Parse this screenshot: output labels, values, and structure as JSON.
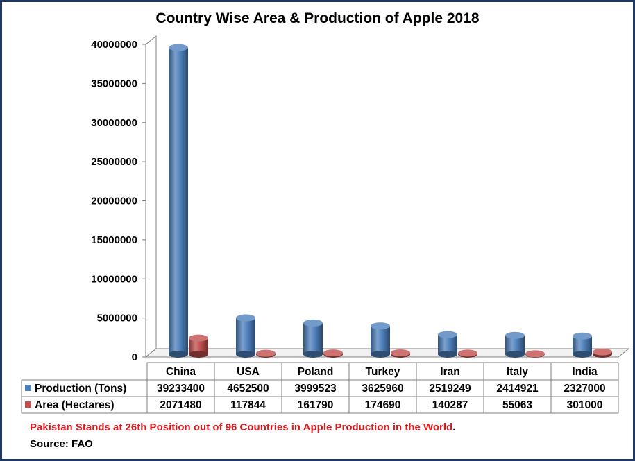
{
  "chart_data": {
    "type": "bar",
    "title": "Country Wise Area & Production of Apple 2018",
    "categories": [
      "China",
      "USA",
      "Poland",
      "Turkey",
      "Iran",
      "Italy",
      "India"
    ],
    "series": [
      {
        "name": "Production (Tons)",
        "color": "#4f81bd",
        "values": [
          39233400,
          4652500,
          3999523,
          3625960,
          2519249,
          2414921,
          2327000
        ],
        "display": [
          "39233400",
          "4652500",
          "3999523",
          "3625960",
          "2519249",
          "2414921",
          "2327000"
        ]
      },
      {
        "name": "Area (Hectares)",
        "color": "#c0504d",
        "values": [
          2071480,
          117844,
          161790,
          174690,
          140287,
          55063,
          301000
        ],
        "display": [
          "2071480",
          "117844",
          "161790",
          "174690",
          "140287",
          "55063",
          "301000"
        ]
      }
    ],
    "ylim": [
      0,
      40000000
    ],
    "yticks": [
      "0",
      "5000000",
      "10000000",
      "15000000",
      "20000000",
      "25000000",
      "30000000",
      "35000000",
      "40000000"
    ],
    "grid": false,
    "legend": "data-table"
  },
  "notes": {
    "footnote_main": "Pakistan Stands at 26th Position out of 96 Countries in Apple Production in the World",
    "footnote_tail": ".",
    "source": "Source: FAO"
  }
}
